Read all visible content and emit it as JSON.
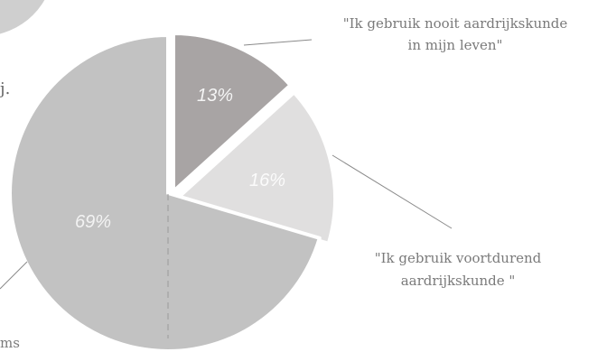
{
  "chart_data": {
    "type": "pie",
    "slices": [
      {
        "label": "13%",
        "value": 13,
        "color": "#a8a4a4",
        "label_color": "#f4f4f4"
      },
      {
        "label": "16%",
        "value": 16,
        "color": "#e0dfdf",
        "label_color": "#fbfbfb"
      },
      {
        "label": "69%",
        "value": 69,
        "color": "#c2c2c2",
        "label_color": "#f3f3f3"
      }
    ],
    "annotations": [
      {
        "text_lines": [
          "\"Ik gebruik nooit aardrijkskunde",
          "in mijn leven\""
        ],
        "slice": "13%"
      },
      {
        "text_lines": [
          "\"Ik gebruik voortdurend",
          "aardrijkskunde \""
        ],
        "slice": "16%"
      },
      {
        "text_lines": [
          "ms"
        ],
        "slice": "69%"
      }
    ]
  },
  "decor": {
    "background_circle_color": "#cfcfcf",
    "fragment_text": "j."
  }
}
